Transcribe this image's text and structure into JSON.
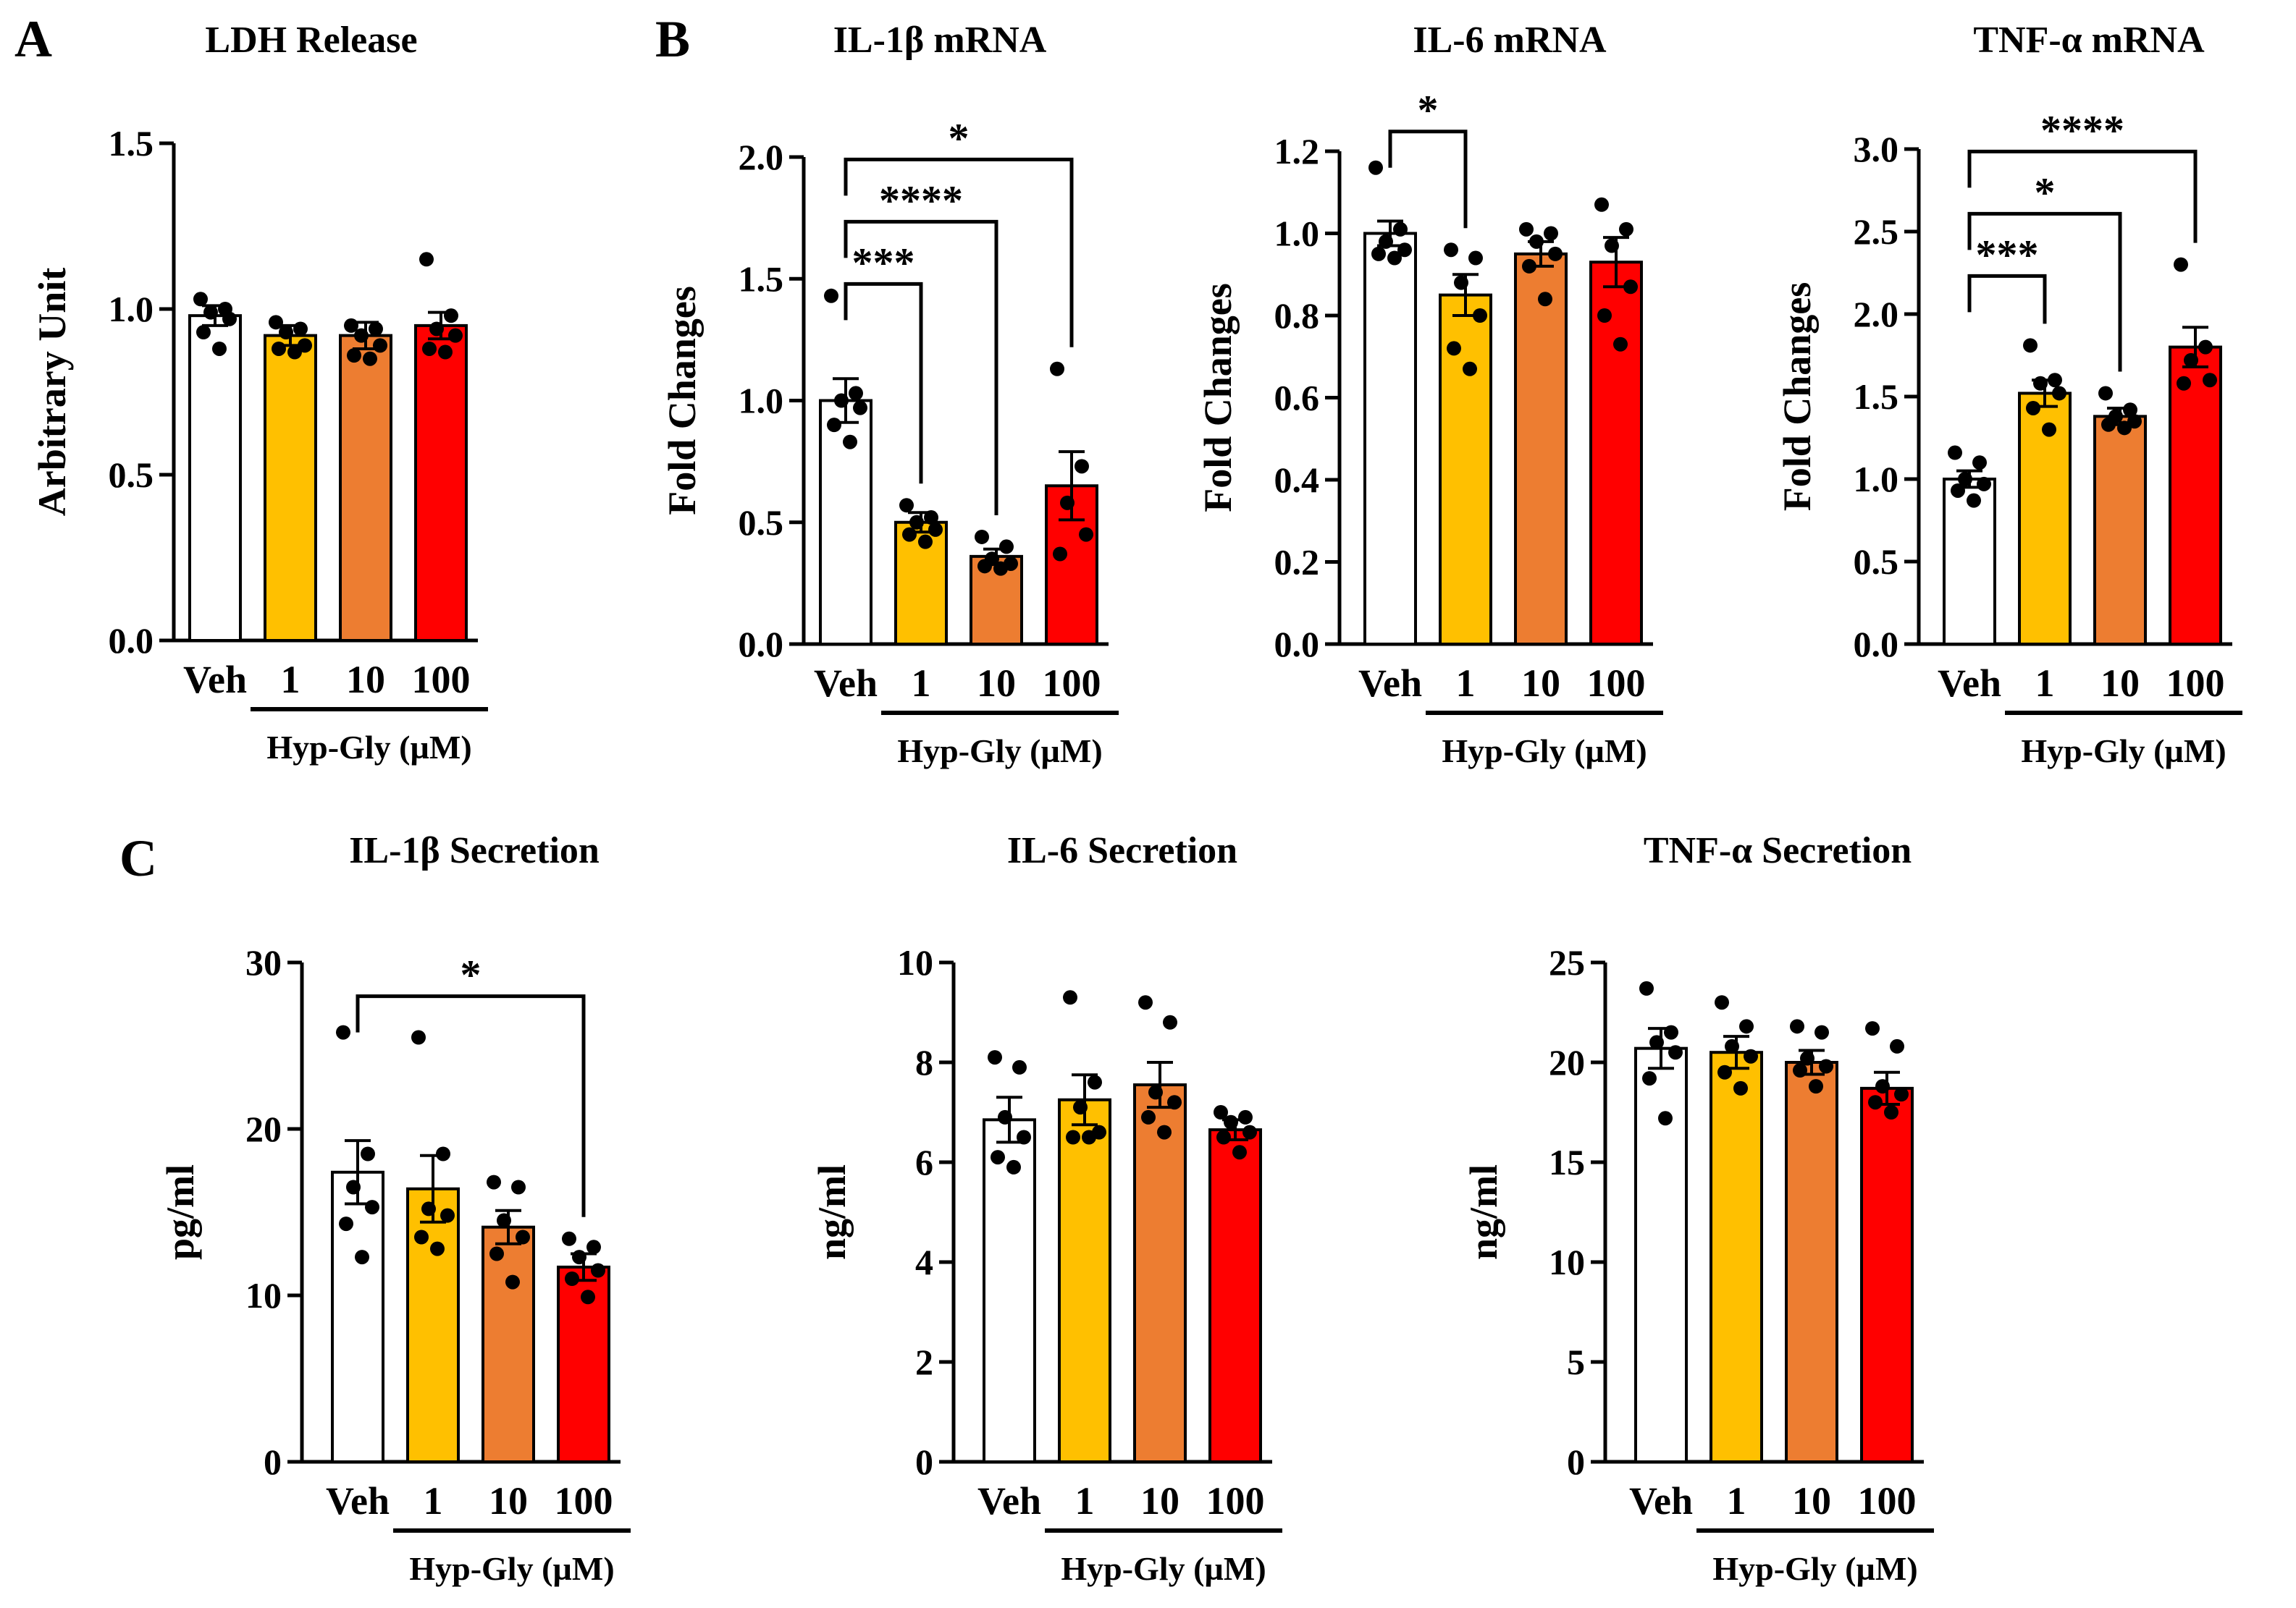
{
  "panel_labels": [
    "A",
    "B",
    "C"
  ],
  "colors": {
    "Veh": "#ffffff",
    "1": "#ffc000",
    "10": "#ed7d31",
    "100": "#ff0000"
  },
  "chart_data": [
    {
      "type": "bar",
      "panel": "A",
      "title": "LDH Release",
      "ylabel": "Arbitrary Unit",
      "categories": [
        "Veh",
        "1",
        "10",
        "100"
      ],
      "group_label": "Hyp-Gly (µM)",
      "ylim": [
        0,
        1.5
      ],
      "yticks": [
        "0.0",
        "0.5",
        "1.0",
        "1.5"
      ],
      "values": [
        0.98,
        0.92,
        0.92,
        0.95
      ],
      "errors": [
        0.03,
        0.03,
        0.04,
        0.04
      ],
      "points": [
        [
          1.03,
          1.0,
          0.99,
          0.97,
          0.93,
          0.88
        ],
        [
          0.96,
          0.94,
          0.93,
          0.89,
          0.88,
          0.87
        ],
        [
          0.95,
          0.94,
          0.92,
          0.89,
          0.86,
          0.85
        ],
        [
          1.15,
          0.98,
          0.94,
          0.92,
          0.88,
          0.87
        ]
      ],
      "significance": []
    },
    {
      "type": "bar",
      "panel": "B",
      "title": "IL-1β mRNA",
      "ylabel": "Fold Changes",
      "categories": [
        "Veh",
        "1",
        "10",
        "100"
      ],
      "group_label": "Hyp-Gly (µM)",
      "ylim": [
        0,
        2.0
      ],
      "yticks": [
        "0.0",
        "0.5",
        "1.0",
        "1.5",
        "2.0"
      ],
      "values": [
        1.0,
        0.5,
        0.36,
        0.65
      ],
      "errors": [
        0.09,
        0.04,
        0.03,
        0.14
      ],
      "points": [
        [
          1.43,
          1.03,
          1.0,
          0.97,
          0.9,
          0.83
        ],
        [
          0.57,
          0.52,
          0.5,
          0.47,
          0.45,
          0.42
        ],
        [
          0.44,
          0.4,
          0.35,
          0.33,
          0.32,
          0.31
        ],
        [
          1.13,
          0.73,
          0.58,
          0.45,
          0.37
        ]
      ],
      "significance": [
        {
          "from": 0,
          "to": 1,
          "label": "***"
        },
        {
          "from": 0,
          "to": 2,
          "label": "****"
        },
        {
          "from": 0,
          "to": 3,
          "label": "*"
        }
      ]
    },
    {
      "type": "bar",
      "panel": "B",
      "title": "IL-6 mRNA",
      "ylabel": "Fold Changes",
      "categories": [
        "Veh",
        "1",
        "10",
        "100"
      ],
      "group_label": "Hyp-Gly (µM)",
      "ylim": [
        0,
        1.2
      ],
      "yticks": [
        "0.0",
        "0.2",
        "0.4",
        "0.6",
        "0.8",
        "1.0",
        "1.2"
      ],
      "values": [
        1.0,
        0.85,
        0.95,
        0.93
      ],
      "errors": [
        0.03,
        0.05,
        0.03,
        0.06
      ],
      "points": [
        [
          1.16,
          1.01,
          0.98,
          0.96,
          0.95,
          0.94
        ],
        [
          0.96,
          0.94,
          0.88,
          0.8,
          0.72,
          0.67
        ],
        [
          1.01,
          1.0,
          0.98,
          0.95,
          0.92,
          0.84
        ],
        [
          1.07,
          1.01,
          0.97,
          0.87,
          0.8,
          0.73
        ]
      ],
      "significance": [
        {
          "from": 0,
          "to": 1,
          "label": "*"
        }
      ]
    },
    {
      "type": "bar",
      "panel": "B",
      "title": "TNF-α mRNA",
      "ylabel": "Fold Changes",
      "categories": [
        "Veh",
        "1",
        "10",
        "100"
      ],
      "group_label": "Hyp-Gly (µM)",
      "ylim": [
        0,
        3.0
      ],
      "yticks": [
        "0.0",
        "0.5",
        "1.0",
        "1.5",
        "2.0",
        "2.5",
        "3.0"
      ],
      "values": [
        1.0,
        1.52,
        1.38,
        1.8
      ],
      "errors": [
        0.05,
        0.08,
        0.05,
        0.12
      ],
      "points": [
        [
          1.16,
          1.1,
          1.0,
          0.97,
          0.93,
          0.87
        ],
        [
          1.81,
          1.6,
          1.58,
          1.52,
          1.43,
          1.3
        ],
        [
          1.52,
          1.42,
          1.38,
          1.35,
          1.33,
          1.31
        ],
        [
          2.3,
          1.8,
          1.72,
          1.6,
          1.58
        ]
      ],
      "significance": [
        {
          "from": 0,
          "to": 1,
          "label": "***"
        },
        {
          "from": 0,
          "to": 2,
          "label": "*"
        },
        {
          "from": 0,
          "to": 3,
          "label": "****"
        }
      ]
    },
    {
      "type": "bar",
      "panel": "C",
      "title": "IL-1β Secretion",
      "ylabel": "pg/ml",
      "categories": [
        "Veh",
        "1",
        "10",
        "100"
      ],
      "group_label": "Hyp-Gly (µM)",
      "ylim": [
        0,
        30
      ],
      "yticks": [
        "0",
        "10",
        "20",
        "30"
      ],
      "values": [
        17.4,
        16.4,
        14.1,
        11.7
      ],
      "errors": [
        1.9,
        2.0,
        1.0,
        0.8
      ],
      "points": [
        [
          25.8,
          18.5,
          16.5,
          15.3,
          14.3,
          12.3
        ],
        [
          25.5,
          18.5,
          15.2,
          14.8,
          13.5,
          12.8
        ],
        [
          16.8,
          16.5,
          14.5,
          13.5,
          12.5,
          10.8
        ],
        [
          13.4,
          12.9,
          12.3,
          11.5,
          11.0,
          9.9
        ]
      ],
      "significance": [
        {
          "from": 0,
          "to": 3,
          "label": "*"
        }
      ]
    },
    {
      "type": "bar",
      "panel": "C",
      "title": "IL-6 Secretion",
      "ylabel": "ng/ml",
      "categories": [
        "Veh",
        "1",
        "10",
        "100"
      ],
      "group_label": "Hyp-Gly (µM)",
      "ylim": [
        0,
        10
      ],
      "yticks": [
        "0",
        "2",
        "4",
        "6",
        "8",
        "10"
      ],
      "values": [
        6.85,
        7.25,
        7.55,
        6.65
      ],
      "errors": [
        0.45,
        0.5,
        0.45,
        0.2
      ],
      "points": [
        [
          8.1,
          7.9,
          6.9,
          6.5,
          6.1,
          5.9
        ],
        [
          9.3,
          7.6,
          7.1,
          6.6,
          6.5,
          6.5
        ],
        [
          9.2,
          8.8,
          7.4,
          7.2,
          6.9,
          6.6
        ],
        [
          7.0,
          6.9,
          6.8,
          6.6,
          6.5,
          6.2
        ]
      ],
      "significance": []
    },
    {
      "type": "bar",
      "panel": "C",
      "title": "TNF-α Secretion",
      "ylabel": "ng/ml",
      "categories": [
        "Veh",
        "1",
        "10",
        "100"
      ],
      "group_label": "Hyp-Gly (µM)",
      "ylim": [
        0,
        25
      ],
      "yticks": [
        "0",
        "5",
        "10",
        "15",
        "20",
        "25"
      ],
      "values": [
        20.7,
        20.5,
        20.0,
        18.7
      ],
      "errors": [
        1.0,
        0.8,
        0.6,
        0.8
      ],
      "points": [
        [
          23.7,
          21.5,
          21.0,
          20.5,
          19.2,
          17.2
        ],
        [
          23.0,
          21.8,
          20.8,
          20.3,
          19.5,
          18.7
        ],
        [
          21.8,
          21.5,
          20.2,
          19.8,
          19.6,
          18.8
        ],
        [
          21.7,
          20.8,
          18.8,
          18.4,
          18.0,
          17.5
        ]
      ],
      "significance": []
    }
  ]
}
